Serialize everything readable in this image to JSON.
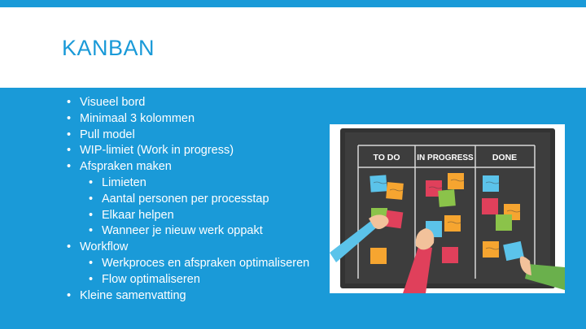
{
  "slide": {
    "title": "KANBAN",
    "bullets": [
      {
        "text": "Visueel bord",
        "level": 1
      },
      {
        "text": "Minimaal 3 kolommen",
        "level": 1
      },
      {
        "text": "Pull model",
        "level": 1
      },
      {
        "text": "WIP-limiet (Work in progress)",
        "level": 1
      },
      {
        "text": "Afspraken maken",
        "level": 1
      },
      {
        "text": "Limieten",
        "level": 2
      },
      {
        "text": "Aantal personen per processtap",
        "level": 2
      },
      {
        "text": "Elkaar helpen",
        "level": 2
      },
      {
        "text": "Wanneer je nieuw werk oppakt",
        "level": 2
      },
      {
        "text": "Workflow",
        "level": 1
      },
      {
        "text": "Werkproces en afspraken optimaliseren",
        "level": 2
      },
      {
        "text": "Flow optimaliseren",
        "level": 2
      },
      {
        "text": "Kleine samenvatting",
        "level": 1
      }
    ]
  },
  "board": {
    "columns": [
      "TO DO",
      "IN PROGRESS",
      "DONE"
    ]
  },
  "colors": {
    "accent": "#1a9ad8",
    "board": "#3b3b3b"
  }
}
